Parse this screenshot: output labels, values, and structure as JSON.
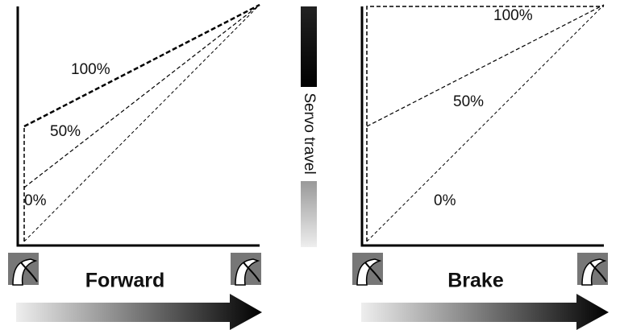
{
  "forward_panel": {
    "curve_labels": [
      "100%",
      "50%",
      "0%"
    ],
    "direction_label": "Forward"
  },
  "servo_axis_label": "Servo travel",
  "brake_panel": {
    "curve_labels": [
      "100%",
      "50%",
      "0%"
    ],
    "direction_label": "Brake"
  }
}
